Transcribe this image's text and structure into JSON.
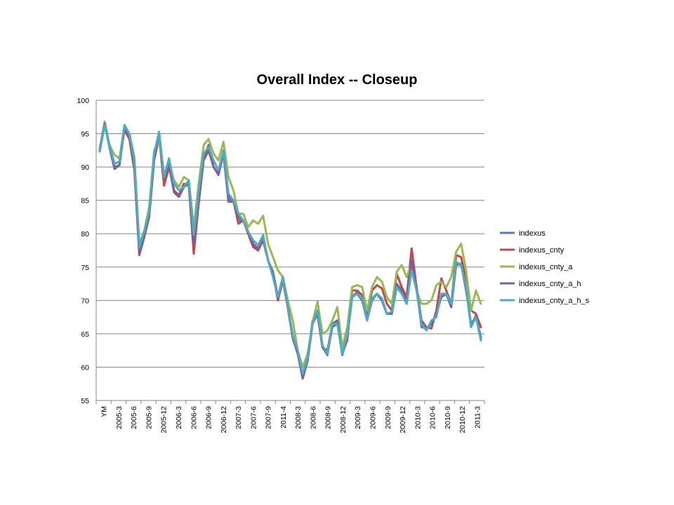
{
  "chart_data": {
    "type": "line",
    "title": "Overall Index -- Closeup",
    "xlabel": "",
    "ylabel": "",
    "ylim": [
      55,
      100
    ],
    "yticks": [
      55,
      60,
      65,
      70,
      75,
      80,
      85,
      90,
      95,
      100
    ],
    "grid": true,
    "legend_position": "right",
    "x_tick_labels": [
      "YM",
      "2005-3",
      "2005-6",
      "2005-9",
      "2005-12",
      "2006-3",
      "2006-6",
      "2006-9",
      "2006-12",
      "2007-3",
      "2007-6",
      "2007-9",
      "2011-4",
      "2008-3",
      "2008-6",
      "2008-9",
      "2008-12",
      "2009-3",
      "2009-6",
      "2009-9",
      "2009-12",
      "2010-3",
      "2010-6",
      "2010-9",
      "2010-12",
      "2011-3"
    ],
    "series": [
      {
        "name": "indexus",
        "color": "#4a7ebb",
        "values": [
          92.3,
          96.5,
          93.0,
          90.0,
          90.3,
          96.0,
          94.5,
          90.0,
          77.0,
          80.0,
          83.0,
          91.5,
          95.0,
          88.0,
          90.5,
          86.5,
          85.7,
          87.0,
          87.5,
          79.0,
          86.0,
          91.5,
          93.0,
          90.0,
          89.0,
          92.5,
          85.0,
          85.0,
          82.0,
          82.0,
          80.0,
          78.0,
          77.8,
          79.5,
          76.0,
          74.3,
          70.5,
          73.5,
          69.0,
          64.5,
          62.0,
          58.3,
          61.0,
          66.5,
          68.0,
          63.0,
          62.0,
          66.0,
          66.5,
          62.0,
          64.5,
          70.5,
          71.0,
          70.0,
          67.0,
          70.0,
          71.0,
          70.0,
          68.0,
          68.0,
          72.0,
          71.0,
          70.0,
          75.0,
          72.0,
          66.0,
          65.8,
          66.5,
          68.0,
          70.5,
          71.0,
          69.0,
          75.5,
          75.3,
          72.0,
          66.0,
          67.8,
          64.3
        ]
      },
      {
        "name": "indexus_cnty",
        "color": "#be4b48",
        "values": [
          92.5,
          96.8,
          93.0,
          90.5,
          90.8,
          95.5,
          94.2,
          89.5,
          76.8,
          79.5,
          82.5,
          91.0,
          94.5,
          87.2,
          90.0,
          86.5,
          85.8,
          87.5,
          87.2,
          77.0,
          84.5,
          91.0,
          92.5,
          90.0,
          89.0,
          92.0,
          85.5,
          85.0,
          81.5,
          82.0,
          80.0,
          78.0,
          77.5,
          79.0,
          76.0,
          74.0,
          70.0,
          73.0,
          68.8,
          64.3,
          62.0,
          58.5,
          61.5,
          67.0,
          67.8,
          63.0,
          62.5,
          66.5,
          67.0,
          62.0,
          64.0,
          71.5,
          71.5,
          70.8,
          67.5,
          71.5,
          72.3,
          71.8,
          69.5,
          68.5,
          74.0,
          72.0,
          70.5,
          77.8,
          72.0,
          67.0,
          66.0,
          65.8,
          68.5,
          73.3,
          71.5,
          69.5,
          76.8,
          76.5,
          73.0,
          68.5,
          68.0,
          66.0
        ]
      },
      {
        "name": "indexus_cnty_a",
        "color": "#98b954",
        "values": [
          92.8,
          96.8,
          93.3,
          91.8,
          91.3,
          96.3,
          95.0,
          91.5,
          78.5,
          80.5,
          84.0,
          92.5,
          94.0,
          89.0,
          90.5,
          88.0,
          87.0,
          88.5,
          88.0,
          81.0,
          87.5,
          93.3,
          94.2,
          92.0,
          91.0,
          93.8,
          88.5,
          86.5,
          83.0,
          83.0,
          81.0,
          82.0,
          81.5,
          82.7,
          78.5,
          76.5,
          74.5,
          73.5,
          70.0,
          67.0,
          62.5,
          60.0,
          62.0,
          66.8,
          69.8,
          65.0,
          65.5,
          67.0,
          69.0,
          63.0,
          66.0,
          72.0,
          72.3,
          72.0,
          68.5,
          72.0,
          73.5,
          72.8,
          70.5,
          69.5,
          74.3,
          75.3,
          73.5,
          75.5,
          71.5,
          69.5,
          69.5,
          70.0,
          72.3,
          72.8,
          72.0,
          73.5,
          77.3,
          78.5,
          74.5,
          68.5,
          71.5,
          69.5
        ]
      },
      {
        "name": "indexus_cnty_a_h",
        "color": "#7e5f9b",
        "values": [
          92.5,
          96.5,
          92.8,
          89.7,
          90.3,
          96.0,
          94.7,
          90.5,
          77.0,
          79.8,
          82.8,
          91.3,
          95.0,
          88.5,
          90.5,
          86.2,
          85.5,
          87.0,
          87.5,
          78.5,
          85.0,
          91.3,
          93.3,
          90.0,
          88.8,
          92.0,
          84.8,
          84.8,
          82.5,
          82.0,
          80.3,
          78.5,
          77.8,
          79.5,
          76.0,
          74.0,
          70.5,
          73.5,
          69.0,
          64.5,
          62.3,
          58.3,
          61.0,
          66.5,
          68.0,
          63.0,
          61.8,
          66.5,
          67.0,
          61.8,
          64.5,
          70.5,
          71.3,
          70.0,
          67.3,
          70.3,
          71.0,
          70.0,
          68.0,
          68.0,
          72.5,
          71.5,
          69.5,
          76.0,
          71.8,
          66.5,
          65.8,
          66.5,
          68.0,
          70.5,
          71.0,
          69.0,
          75.3,
          75.5,
          71.5,
          66.5,
          67.5,
          64.5
        ]
      },
      {
        "name": "indexus_cnty_a_h_s",
        "color": "#4bacc6",
        "values": [
          92.3,
          96.3,
          93.0,
          90.5,
          90.8,
          96.3,
          95.0,
          91.0,
          78.0,
          80.3,
          83.3,
          92.0,
          95.3,
          88.5,
          91.3,
          87.5,
          86.5,
          87.0,
          88.0,
          79.8,
          86.5,
          92.0,
          93.0,
          91.0,
          89.5,
          92.5,
          86.0,
          85.0,
          83.0,
          82.0,
          80.3,
          79.0,
          78.3,
          79.8,
          76.0,
          73.5,
          70.5,
          73.5,
          69.0,
          64.8,
          62.5,
          59.0,
          61.5,
          66.5,
          68.5,
          63.3,
          62.0,
          66.5,
          66.5,
          62.0,
          64.8,
          70.5,
          71.0,
          70.3,
          67.0,
          70.3,
          71.0,
          70.3,
          68.0,
          68.3,
          72.0,
          71.0,
          69.5,
          74.5,
          71.5,
          66.5,
          65.5,
          67.0,
          67.5,
          71.0,
          71.0,
          69.5,
          75.8,
          75.3,
          72.0,
          66.0,
          67.5,
          64.0
        ]
      }
    ]
  }
}
